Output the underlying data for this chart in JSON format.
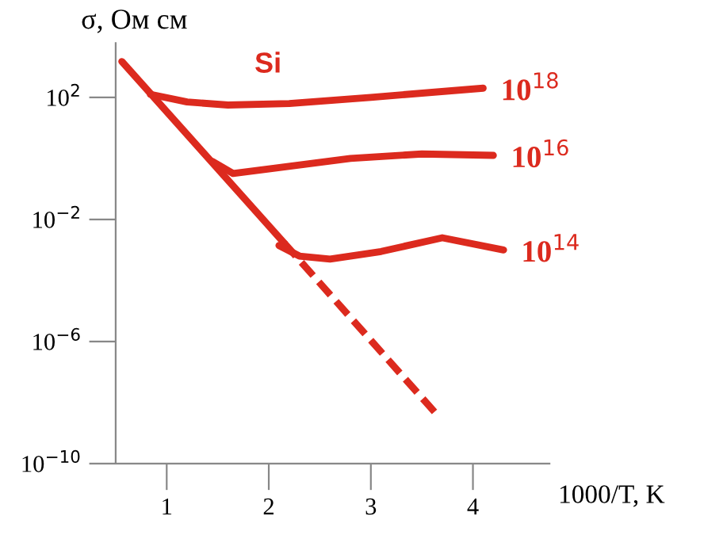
{
  "chart_data": {
    "type": "line",
    "title": null,
    "ylabel": "σ, Ом см",
    "xlabel": "1000/T, K",
    "annotations": [
      "Si"
    ],
    "log": "y",
    "grid": false,
    "marker": "none",
    "xlim": [
      0.5,
      4.75
    ],
    "ylim": [
      1e-10,
      6000
    ],
    "xticks": [
      1,
      2,
      3,
      4
    ],
    "yticks": [
      {
        "value": 100,
        "label": "10$^{2}$"
      },
      {
        "value": 0.01,
        "label": "10$^{−2}$"
      },
      {
        "value": 1e-06,
        "label": "10$^{−6}$"
      },
      {
        "value": 1e-10,
        "label": "10$^{−10}$"
      }
    ],
    "series": [
      {
        "color": "#dc2a1e",
        "line_style": "solid",
        "x": [
          0.56,
          2.15
        ],
        "values": [
          1500,
          0.0017
        ]
      },
      {
        "color": "#dc2a1e",
        "line_style": "dashed",
        "x": [
          2.15,
          3.66
        ],
        "values": [
          0.0017,
          3.6e-09
        ]
      },
      {
        "name": "10$^{18}$",
        "color": "#dc2a1e",
        "line_style": "solid",
        "x": [
          0.84,
          1.2,
          1.6,
          2.2,
          3.0,
          4.1
        ],
        "values": [
          126,
          71,
          56,
          63,
          100,
          200
        ]
      },
      {
        "name": "10$^{16}$",
        "color": "#dc2a1e",
        "line_style": "solid",
        "x": [
          1.45,
          1.65,
          2.0,
          2.8,
          3.5,
          4.2
        ],
        "values": [
          0.79,
          0.32,
          0.45,
          1.0,
          1.4,
          1.26
        ]
      },
      {
        "name": "10$^{14}$",
        "color": "#dc2a1e",
        "line_style": "solid",
        "x": [
          2.1,
          2.3,
          2.6,
          3.1,
          3.7,
          4.3
        ],
        "values": [
          0.0014,
          0.00063,
          0.0005,
          0.00089,
          0.0025,
          0.001
        ]
      }
    ]
  }
}
